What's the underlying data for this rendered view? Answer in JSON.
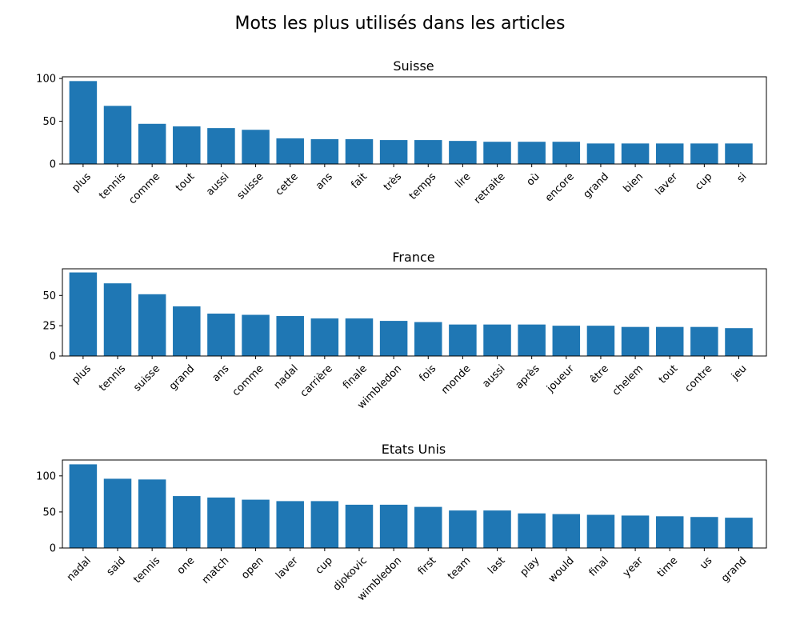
{
  "figure": {
    "title": "Mots les plus utilisés dans les articles",
    "bar_color": "#1f77b4"
  },
  "chart_data": [
    {
      "type": "bar",
      "title": "Suisse",
      "categories": [
        "plus",
        "tennis",
        "comme",
        "tout",
        "aussi",
        "suisse",
        "cette",
        "ans",
        "fait",
        "très",
        "temps",
        "lire",
        "retraite",
        "où",
        "encore",
        "grand",
        "bien",
        "laver",
        "cup",
        "si"
      ],
      "values": [
        97,
        68,
        47,
        44,
        42,
        40,
        30,
        29,
        29,
        28,
        28,
        27,
        26,
        26,
        26,
        24,
        24,
        24,
        24,
        24
      ],
      "ylim": [
        0,
        102
      ],
      "yticks": [
        0,
        50,
        100
      ],
      "xlabel": "",
      "ylabel": ""
    },
    {
      "type": "bar",
      "title": "France",
      "categories": [
        "plus",
        "tennis",
        "suisse",
        "grand",
        "ans",
        "comme",
        "nadal",
        "carrière",
        "finale",
        "wimbledon",
        "fois",
        "monde",
        "aussi",
        "après",
        "joueur",
        "être",
        "chelem",
        "tout",
        "contre",
        "jeu"
      ],
      "values": [
        69,
        60,
        51,
        41,
        35,
        34,
        33,
        31,
        31,
        29,
        28,
        26,
        26,
        26,
        25,
        25,
        24,
        24,
        24,
        23
      ],
      "ylim": [
        0,
        72
      ],
      "yticks": [
        0,
        25,
        50
      ],
      "xlabel": "",
      "ylabel": ""
    },
    {
      "type": "bar",
      "title": "Etats Unis",
      "categories": [
        "nadal",
        "said",
        "tennis",
        "one",
        "match",
        "open",
        "laver",
        "cup",
        "djokovic",
        "wimbledon",
        "first",
        "team",
        "last",
        "play",
        "would",
        "final",
        "year",
        "time",
        "us",
        "grand"
      ],
      "values": [
        116,
        96,
        95,
        72,
        70,
        67,
        65,
        65,
        60,
        60,
        57,
        52,
        52,
        48,
        47,
        46,
        45,
        44,
        43,
        42
      ],
      "ylim": [
        0,
        122
      ],
      "yticks": [
        0,
        50,
        100
      ],
      "xlabel": "",
      "ylabel": ""
    }
  ]
}
